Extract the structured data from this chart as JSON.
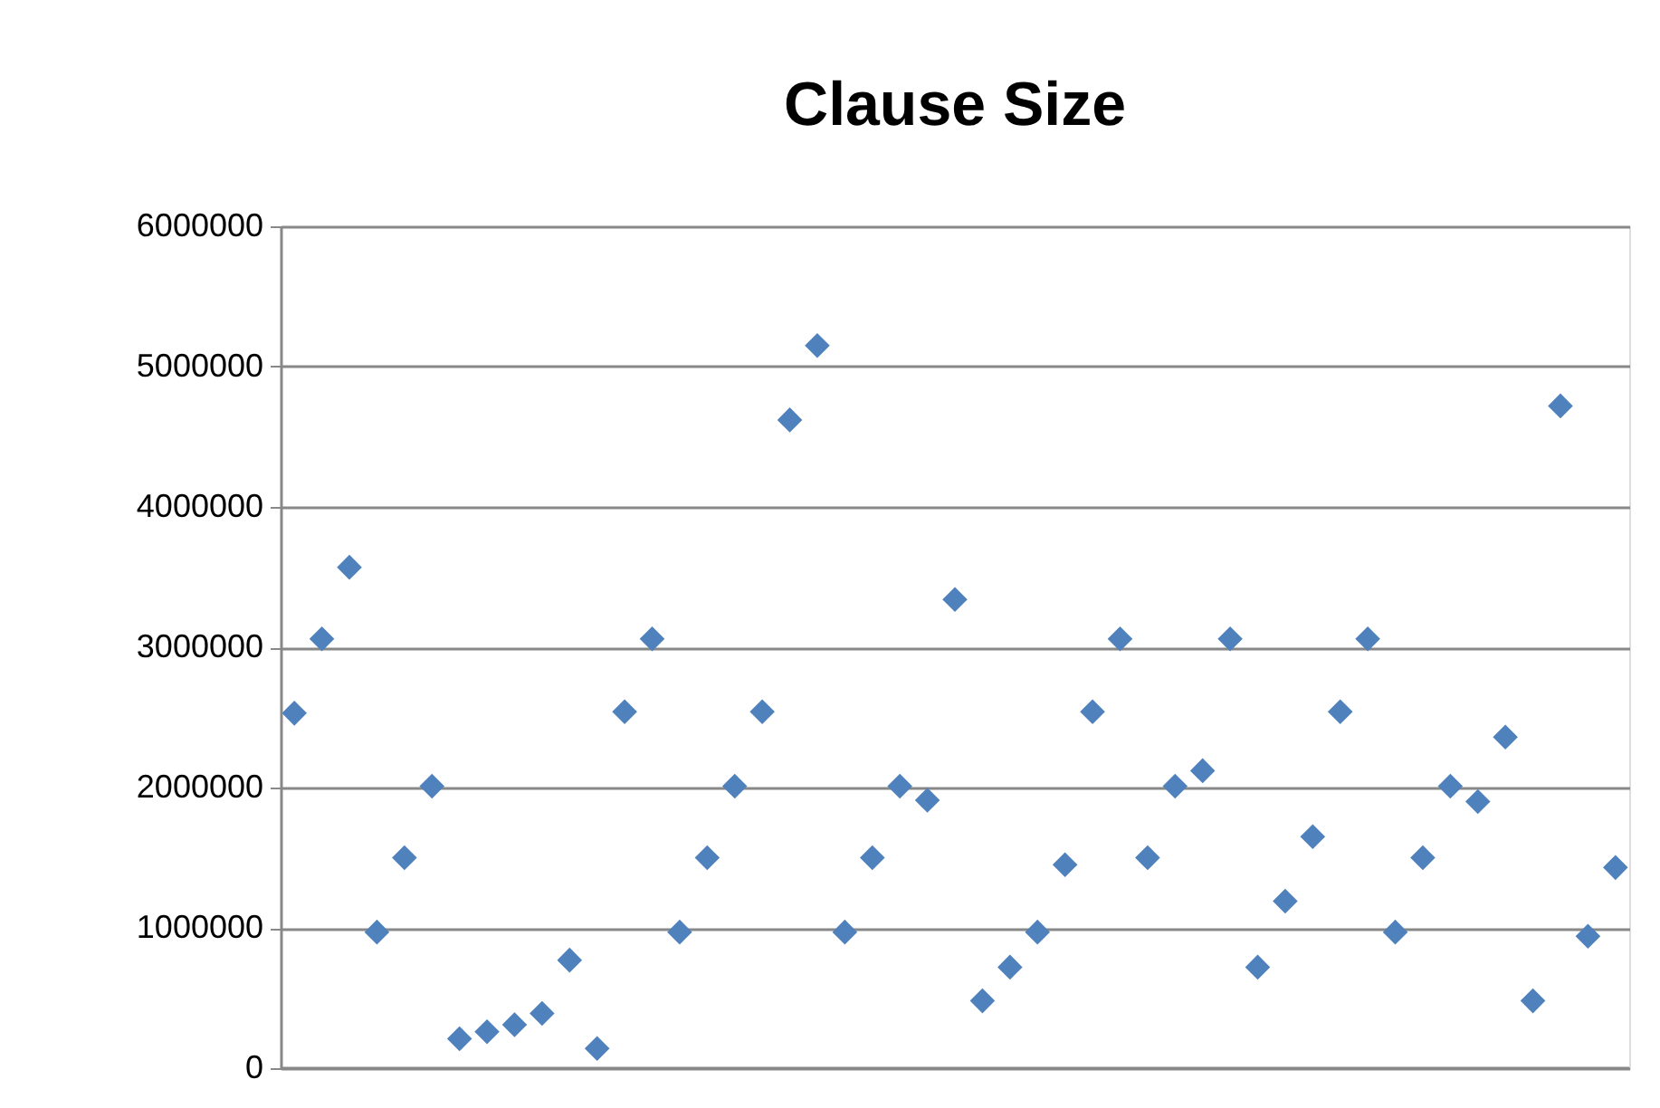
{
  "chart_data": {
    "type": "scatter",
    "title": "Clause Size",
    "categories": [
      null,
      null,
      null,
      null,
      null,
      null,
      null,
      null,
      null,
      null,
      null,
      null,
      null,
      null,
      null,
      null,
      null,
      null,
      null,
      null,
      null,
      null,
      null,
      null,
      null,
      null,
      null,
      null,
      null,
      null,
      null,
      null,
      null,
      null,
      null,
      null,
      null,
      null,
      null,
      null,
      null,
      null,
      null,
      null,
      null,
      null,
      null,
      null,
      null
    ],
    "series": [
      {
        "color": "#4f81bd",
        "values": [
          2530000,
          3060000,
          3570000,
          970000,
          1500000,
          2010000,
          210000,
          260000,
          310000,
          390000,
          770000,
          140000,
          2540000,
          3060000,
          970000,
          1500000,
          2010000,
          2540000,
          4620000,
          5150000,
          970000,
          1500000,
          2010000,
          1910000,
          3340000,
          480000,
          720000,
          970000,
          1450000,
          2540000,
          3060000,
          1500000,
          2010000,
          2120000,
          3060000,
          720000,
          1190000,
          1650000,
          2540000,
          3060000,
          970000,
          1500000,
          2010000,
          1900000,
          2360000,
          480000,
          4720000,
          940000,
          1430000
        ]
      }
    ],
    "ylim": [
      0,
      6000000
    ],
    "yticks": [
      0,
      1000000,
      2000000,
      3000000,
      4000000,
      5000000,
      6000000
    ],
    "grid": "y",
    "marker": "diamond",
    "tick_labels": "y",
    "legend": false
  }
}
